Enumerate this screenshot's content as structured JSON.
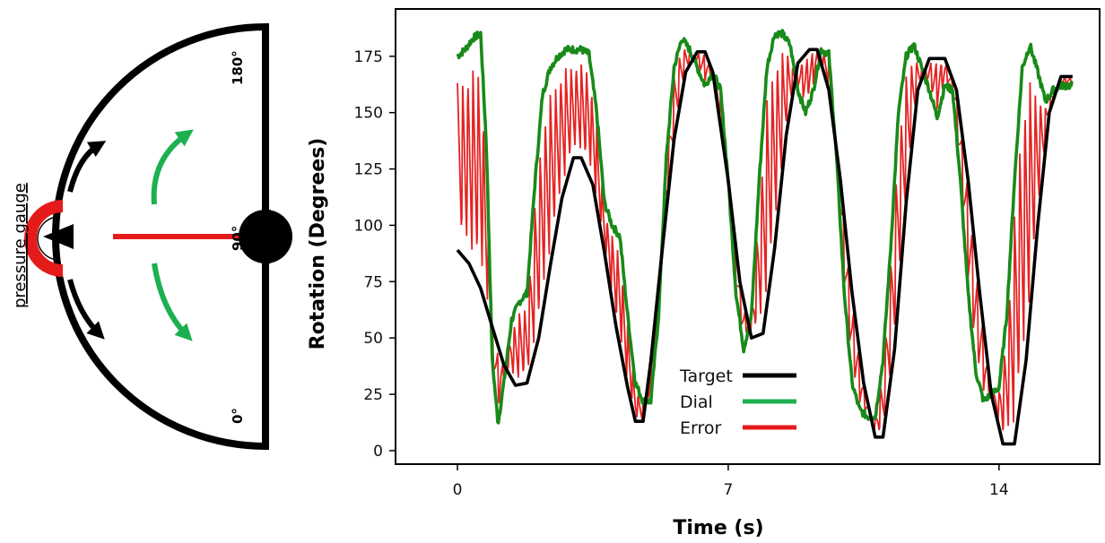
{
  "gauge": {
    "side_label": "pressure gauge",
    "label_180": "180°",
    "label_90": "90°",
    "label_0": "0°",
    "colors": {
      "outline": "#000000",
      "needle": "#e51b1b",
      "arrow_black": "#000000",
      "arrow_green": "#1db050",
      "zone": "#e51b1b"
    }
  },
  "chart_data": {
    "type": "line",
    "title": "",
    "xlabel": "Time (s)",
    "ylabel": "Rotation (Degrees)",
    "xlim": [
      -1.6,
      16.6
    ],
    "ylim": [
      -6,
      196
    ],
    "xticks": [
      0,
      7,
      14
    ],
    "yticks": [
      0,
      25,
      50,
      75,
      100,
      125,
      150,
      175
    ],
    "grid": false,
    "legend_position": "bottom-center",
    "series": [
      {
        "name": "Target",
        "color": "#000000",
        "x": [
          0,
          0.3,
          0.6,
          0.9,
          1.2,
          1.5,
          1.8,
          2.1,
          2.4,
          2.7,
          3.0,
          3.2,
          3.5,
          3.8,
          4.1,
          4.4,
          4.6,
          4.8,
          5.0,
          5.3,
          5.6,
          5.9,
          6.2,
          6.4,
          6.6,
          7.0,
          7.3,
          7.6,
          7.9,
          8.2,
          8.5,
          8.8,
          9.1,
          9.3,
          9.6,
          9.9,
          10.2,
          10.5,
          10.8,
          11.0,
          11.3,
          11.6,
          11.9,
          12.2,
          12.6,
          12.9,
          13.2,
          13.5,
          13.8,
          14.1,
          14.4,
          14.7,
          15.0,
          15.3,
          15.6,
          15.9
        ],
        "y": [
          89,
          83,
          72,
          55,
          38,
          29,
          30,
          50,
          82,
          112,
          130,
          130,
          118,
          88,
          55,
          28,
          13,
          13,
          40,
          90,
          138,
          168,
          177,
          177,
          168,
          120,
          75,
          50,
          52,
          90,
          140,
          172,
          178,
          178,
          160,
          120,
          70,
          30,
          6,
          6,
          45,
          110,
          160,
          174,
          174,
          160,
          120,
          70,
          25,
          3,
          3,
          40,
          100,
          150,
          166,
          166
        ]
      },
      {
        "name": "Dial",
        "color": "#188a18",
        "x": [
          0,
          0.2,
          0.4,
          0.6,
          0.75,
          0.9,
          1.05,
          1.2,
          1.4,
          1.6,
          1.8,
          2.0,
          2.2,
          2.4,
          2.6,
          2.8,
          3.0,
          3.2,
          3.4,
          3.6,
          3.8,
          4.0,
          4.2,
          4.4,
          4.6,
          4.8,
          5.0,
          5.2,
          5.4,
          5.6,
          5.8,
          6.0,
          6.2,
          6.4,
          6.6,
          6.8,
          7.0,
          7.2,
          7.4,
          7.6,
          7.8,
          8.0,
          8.2,
          8.4,
          8.6,
          8.8,
          9.0,
          9.2,
          9.4,
          9.6,
          9.8,
          10.0,
          10.2,
          10.4,
          10.6,
          10.8,
          11.0,
          11.2,
          11.4,
          11.6,
          11.8,
          12.0,
          12.2,
          12.4,
          12.6,
          12.8,
          13.0,
          13.2,
          13.4,
          13.6,
          13.8,
          14.0,
          14.2,
          14.4,
          14.6,
          14.8,
          15.0,
          15.2,
          15.4,
          15.6,
          15.9
        ],
        "y": [
          175,
          178,
          183,
          185,
          135,
          40,
          12,
          30,
          58,
          66,
          70,
          118,
          158,
          170,
          175,
          178,
          178,
          178,
          176,
          150,
          110,
          100,
          95,
          60,
          30,
          22,
          22,
          60,
          130,
          170,
          183,
          178,
          170,
          162,
          168,
          160,
          120,
          70,
          45,
          60,
          120,
          170,
          185,
          185,
          180,
          160,
          150,
          160,
          178,
          176,
          130,
          70,
          30,
          18,
          15,
          15,
          40,
          90,
          150,
          175,
          180,
          170,
          160,
          148,
          162,
          160,
          120,
          70,
          35,
          22,
          25,
          28,
          60,
          120,
          170,
          180,
          168,
          155,
          160,
          162,
          162
        ],
        "style": "noisy"
      },
      {
        "name": "Error",
        "color": "#e52222",
        "style": "oscillating"
      }
    ]
  }
}
